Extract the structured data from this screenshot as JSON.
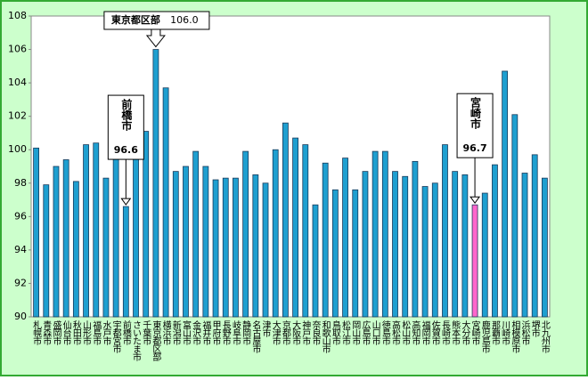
{
  "chart_data": {
    "type": "bar",
    "categories": [
      "札幌市",
      "青森市",
      "盛岡市",
      "仙台市",
      "秋田市",
      "山形市",
      "福島市",
      "水戸市",
      "宇都宮市",
      "前橋市",
      "さいたま市",
      "千葉市",
      "東京都区部",
      "横浜市",
      "新潟市",
      "富山市",
      "金沢市",
      "福井市",
      "甲府市",
      "長野市",
      "岐阜市",
      "静岡市",
      "名古屋市",
      "津市",
      "大津市",
      "京都市",
      "大阪市",
      "神戸市",
      "奈良市",
      "和歌山市",
      "鳥取市",
      "松江市",
      "岡山市",
      "広島市",
      "山口市",
      "徳島市",
      "高松市",
      "松山市",
      "高知市",
      "福岡市",
      "佐賀市",
      "長崎市",
      "熊本市",
      "大分市",
      "宮崎市",
      "鹿児島市",
      "那覇市",
      "川崎市",
      "相模原市",
      "浜松市",
      "堺市",
      "北九州市"
    ],
    "values": [
      100.1,
      97.9,
      99.0,
      99.4,
      98.1,
      100.3,
      100.4,
      98.3,
      99.7,
      96.6,
      101.6,
      101.1,
      106.0,
      103.7,
      98.7,
      99.0,
      99.9,
      99.0,
      98.2,
      98.3,
      98.3,
      99.9,
      98.5,
      98.0,
      100.0,
      101.6,
      100.7,
      100.3,
      96.7,
      99.2,
      97.6,
      99.5,
      97.6,
      98.7,
      99.9,
      99.9,
      98.7,
      98.4,
      99.3,
      97.8,
      98.0,
      100.3,
      98.7,
      98.5,
      96.7,
      97.4,
      99.1,
      104.7,
      102.1,
      98.6,
      99.7,
      98.3
    ],
    "value_labels": [
      null,
      null,
      null,
      null,
      null,
      null,
      null,
      null,
      null,
      "96.6",
      null,
      null,
      "106.0",
      null,
      null,
      null,
      null,
      null,
      null,
      null,
      null,
      null,
      null,
      null,
      null,
      null,
      null,
      null,
      null,
      null,
      null,
      null,
      null,
      null,
      null,
      null,
      null,
      null,
      null,
      null,
      null,
      null,
      null,
      null,
      "96.7",
      null,
      null,
      null,
      null,
      null,
      null,
      null
    ],
    "colors": [
      "#1e9fd0",
      "#1e9fd0",
      "#1e9fd0",
      "#1e9fd0",
      "#1e9fd0",
      "#1e9fd0",
      "#1e9fd0",
      "#1e9fd0",
      "#1e9fd0",
      "#1e9fd0",
      "#1e9fd0",
      "#1e9fd0",
      "#1e9fd0",
      "#1e9fd0",
      "#1e9fd0",
      "#1e9fd0",
      "#1e9fd0",
      "#1e9fd0",
      "#1e9fd0",
      "#1e9fd0",
      "#1e9fd0",
      "#1e9fd0",
      "#1e9fd0",
      "#1e9fd0",
      "#1e9fd0",
      "#1e9fd0",
      "#1e9fd0",
      "#1e9fd0",
      "#1e9fd0",
      "#1e9fd0",
      "#1e9fd0",
      "#1e9fd0",
      "#1e9fd0",
      "#1e9fd0",
      "#1e9fd0",
      "#1e9fd0",
      "#1e9fd0",
      "#1e9fd0",
      "#1e9fd0",
      "#1e9fd0",
      "#1e9fd0",
      "#1e9fd0",
      "#1e9fd0",
      "#1e9fd0",
      "#ff66cc",
      "#1e9fd0",
      "#1e9fd0",
      "#1e9fd0",
      "#1e9fd0",
      "#1e9fd0",
      "#1e9fd0",
      "#1e9fd0"
    ],
    "ylim": [
      90,
      108
    ],
    "yticks": [
      90,
      92,
      94,
      96,
      98,
      100,
      102,
      104,
      106,
      108
    ],
    "grid": false
  }
}
